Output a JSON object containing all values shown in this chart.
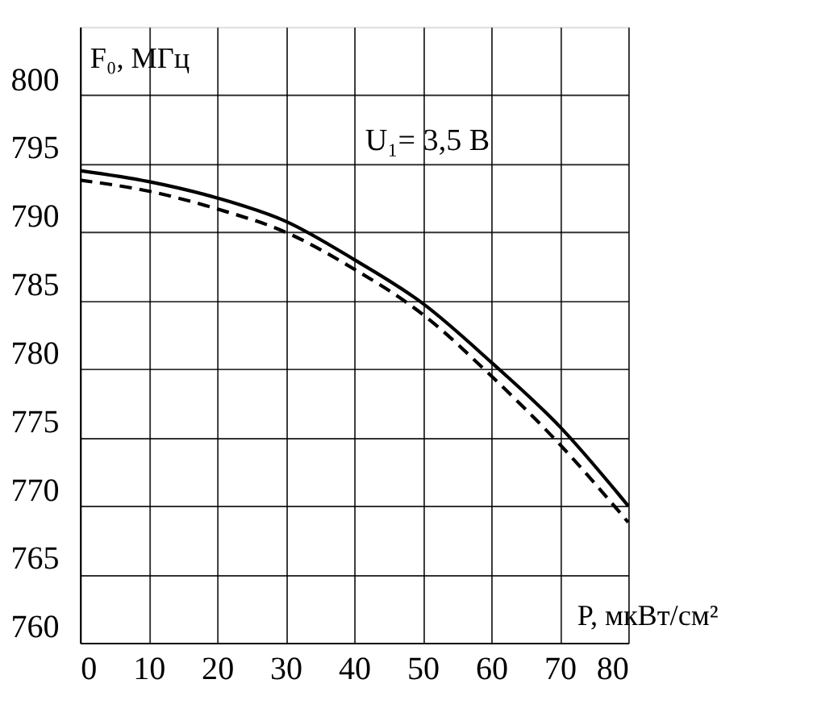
{
  "chart_data": {
    "type": "line",
    "xlabel": "P, мкВт/см²",
    "ylabel": "F₀, МГц",
    "annotations": [
      "U₁= 3,5 В"
    ],
    "x": [
      0,
      10,
      20,
      30,
      40,
      50,
      60,
      70,
      80
    ],
    "series": [
      {
        "color": "#000000",
        "line_style": "solid",
        "values": [
          794.5,
          793.7,
          792.5,
          790.8,
          788,
          784.8,
          780.5,
          775.8,
          770
        ]
      },
      {
        "color": "#000000",
        "line_style": "dashed",
        "values": [
          793.8,
          793,
          791.7,
          790,
          787.3,
          784,
          779.5,
          774.5,
          768.8
        ]
      }
    ],
    "xlim": [
      0,
      80
    ],
    "ylim": [
      760,
      805
    ],
    "xticks": [
      0,
      10,
      20,
      30,
      40,
      50,
      60,
      70,
      80
    ],
    "yticks": [
      760,
      765,
      770,
      775,
      780,
      785,
      790,
      795,
      800
    ],
    "grid": true,
    "marker": "none"
  }
}
